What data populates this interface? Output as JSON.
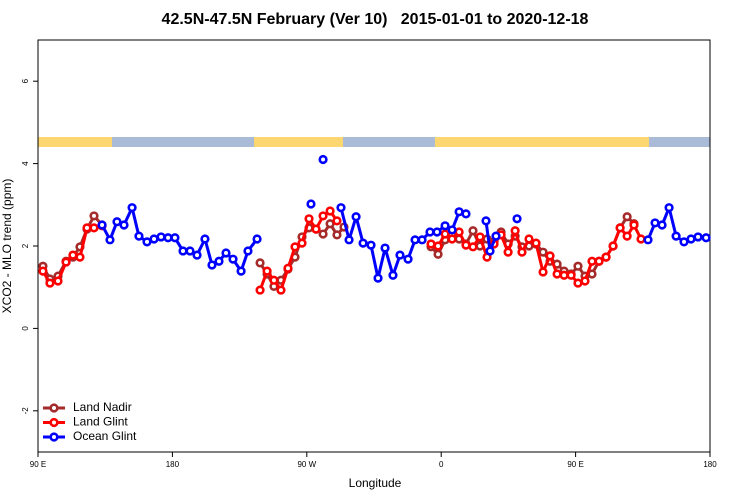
{
  "chart_data": {
    "type": "line",
    "title": "42.5N-47.5N February (Ver 10)   2015-01-01 to 2020-12-18",
    "x_label": "Longitude",
    "y_label": "XCO2 - MLO trend (ppm)",
    "xlim": [
      90,
      540
    ],
    "xticks": [
      {
        "value": 90,
        "label": "90 E"
      },
      180,
      {
        "value": 270,
        "label": "90 W"
      },
      {
        "value": 360,
        "label": "0"
      },
      {
        "value": 450,
        "label": "90 E"
      },
      180
    ],
    "ylim": [
      -3,
      7
    ],
    "yticks": [
      -2,
      0,
      2,
      4,
      6
    ],
    "legend": "bottomleft",
    "series": [
      {
        "name": "Land Nadir",
        "color": "#a52a2a",
        "x": [
          93.3,
          98,
          103.4,
          108.8,
          113.4,
          118.1,
          122.8,
          127.5,
          132.9,
          null,
          238.7,
          243.4,
          248,
          252.7,
          257.4,
          262.1,
          266.8,
          271.5,
          276.2,
          280.9,
          285.6,
          290.2,
          294.9,
          null,
          353.2,
          357.9,
          362.6,
          367.3,
          372,
          376.6,
          381.3,
          386,
          390.7,
          395.4,
          400.1,
          404.8,
          409.5,
          414.1,
          418.8,
          423.5,
          428.2,
          432.9,
          437.6,
          442.3,
          447,
          451.6,
          456.3,
          461,
          465.7,
          470.4,
          475.1,
          479.8,
          484.5,
          489.1
        ],
        "values": [
          1.51,
          1.2,
          1.27,
          1.63,
          1.73,
          1.98,
          2.41,
          2.73,
          2.51,
          null,
          1.59,
          1.32,
          1.02,
          1.17,
          1.44,
          1.73,
          2.22,
          2.44,
          2.41,
          2.29,
          2.54,
          2.27,
          2.46,
          null,
          1.98,
          1.8,
          2.15,
          2.29,
          2.17,
          2.05,
          2.37,
          2,
          2.17,
          2.1,
          2.34,
          2.05,
          2.24,
          1.98,
          2,
          2.05,
          1.85,
          1.63,
          1.56,
          1.39,
          1.32,
          1.51,
          1.27,
          1.32,
          1.63,
          1.73,
          2,
          2.44,
          2.71,
          2.54
        ]
      },
      {
        "name": "Land Glint",
        "color": "#ff0000",
        "x": [
          93.3,
          98,
          103.4,
          108.8,
          113.4,
          118.1,
          122.8,
          127.5,
          132.9,
          null,
          238.7,
          243.4,
          248,
          252.7,
          257.4,
          262.1,
          266.8,
          271.5,
          276.2,
          280.9,
          285.6,
          290.2,
          null,
          353.2,
          357.9,
          362.6,
          367.3,
          372,
          376.6,
          381.3,
          386,
          390.7,
          395.4,
          400.1,
          404.8,
          409.5,
          414.1,
          418.8,
          423.5,
          428.2,
          432.9,
          437.6,
          442.3,
          447,
          451.6,
          456.3,
          461,
          465.7,
          470.4,
          475.1,
          479.8,
          484.5,
          489.1,
          493.8
        ],
        "values": [
          1.39,
          1.1,
          1.15,
          1.61,
          1.78,
          1.73,
          2.44,
          2.44,
          2.49,
          null,
          0.93,
          1.39,
          1.17,
          0.93,
          1.46,
          1.98,
          2.07,
          2.66,
          2.41,
          2.73,
          2.85,
          2.61,
          null,
          2.05,
          2,
          2.29,
          2.17,
          2.34,
          2.02,
          1.98,
          2.22,
          1.73,
          2.05,
          2.27,
          1.85,
          2.37,
          1.85,
          2.17,
          2.07,
          1.37,
          1.76,
          1.32,
          1.29,
          1.29,
          1.1,
          1.15,
          1.63,
          1.63,
          1.73,
          2,
          2.44,
          2.24,
          2.51,
          2.17
        ]
      },
      {
        "name": "Ocean Glint",
        "color": "#0000ff",
        "x": [
          132.9,
          138.2,
          142.9,
          147.6,
          153,
          157.6,
          163,
          167.7,
          172.4,
          177.1,
          181.7,
          187.1,
          191.8,
          196.5,
          201.8,
          206.5,
          211.2,
          215.9,
          220.6,
          226,
          230.6,
          236.7,
          null,
          272.8,
          null,
          280.9,
          null,
          292.9,
          298.3,
          303,
          307.7,
          313,
          317.7,
          322.4,
          327.7,
          332.4,
          337.8,
          342.5,
          347.2,
          352.5,
          357.2,
          362.6,
          367.3,
          372,
          376.6,
          null,
          390,
          392.7,
          396.7,
          null,
          410.8,
          null,
          498.5,
          503.2,
          507.9,
          512.6,
          517.3,
          522.6,
          527.3,
          532,
          537.4
        ],
        "values": [
          2.51,
          2.15,
          2.59,
          2.51,
          2.93,
          2.24,
          2.1,
          2.17,
          2.22,
          2.2,
          2.2,
          1.88,
          1.88,
          1.78,
          2.17,
          1.54,
          1.63,
          1.83,
          1.68,
          1.39,
          1.88,
          2.17,
          null,
          3.02,
          null,
          4.1,
          null,
          2.93,
          2.15,
          2.71,
          2.07,
          2.02,
          1.22,
          1.95,
          1.29,
          1.78,
          1.68,
          2.15,
          2.15,
          2.34,
          2.34,
          2.49,
          2.39,
          2.83,
          2.78,
          null,
          2.61,
          1.88,
          2.24,
          null,
          2.66,
          null,
          2.15,
          2.56,
          2.51,
          2.93,
          2.24,
          2.1,
          2.17,
          2.22,
          2.2
        ]
      }
    ]
  }
}
